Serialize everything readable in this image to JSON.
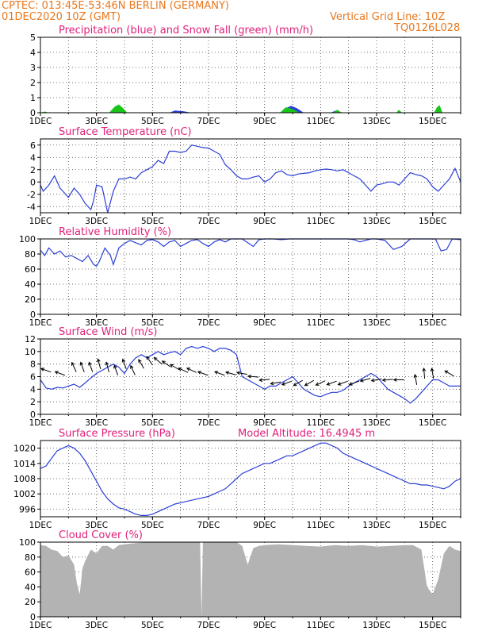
{
  "header": {
    "line1": "CPTEC:   013:45E-53:46N   BERLIN (GERMANY)",
    "line2": "01DEC2020 10Z (GMT)",
    "right1": "Vertical Grid Line: 10Z",
    "right2": "TQ0126L028"
  },
  "colors": {
    "header": "#e8781e",
    "title": "#e0217b",
    "series": "#2a3fd6",
    "snow": "#19c419",
    "cloud": "#b3b3b3",
    "grid": "#444444"
  },
  "x_ticks": [
    "1DEC",
    "3DEC",
    "5DEC",
    "7DEC",
    "9DEC",
    "11DEC",
    "13DEC",
    "15DEC"
  ],
  "x_range_days": [
    1,
    16
  ],
  "chart_data": [
    {
      "type": "area",
      "title": "Precipitation (blue) and Snow Fall (green) (mm/h)",
      "ylim": [
        0,
        5
      ],
      "yticks": [
        "0",
        "1",
        "2",
        "3",
        "4",
        "5"
      ],
      "series": [
        {
          "color": "blue",
          "x": [
            1,
            3.5,
            3.7,
            3.85,
            4,
            5.6,
            5.8,
            6.1,
            6.4,
            9.55,
            9.75,
            9.95,
            10.15,
            10.4,
            11.35,
            11.55,
            11.8
          ],
          "values": [
            0,
            0,
            0.05,
            0.1,
            0,
            0,
            0.15,
            0.1,
            0,
            0,
            0.3,
            0.45,
            0.3,
            0,
            0,
            0.15,
            0
          ]
        },
        {
          "color": "green",
          "x": [
            1,
            1.15,
            1.3,
            3.45,
            3.65,
            3.8,
            3.95,
            4.1,
            9.55,
            9.75,
            9.9,
            10.05,
            10.25,
            11.45,
            11.6,
            11.75,
            13.7,
            13.8,
            13.9,
            15.05,
            15.15,
            15.25,
            15.35
          ],
          "values": [
            0,
            0.08,
            0,
            0,
            0.4,
            0.55,
            0.3,
            0,
            0,
            0.35,
            0.3,
            0.2,
            0,
            0,
            0.2,
            0,
            0,
            0.2,
            0,
            0,
            0.35,
            0.5,
            0
          ]
        }
      ]
    },
    {
      "type": "line",
      "title": "Surface Temperature (nC)",
      "ylim": [
        -5,
        7
      ],
      "yticks": [
        "-4",
        "-2",
        "0",
        "2",
        "4",
        "6"
      ],
      "x": [
        1,
        1.1,
        1.3,
        1.5,
        1.7,
        1.8,
        2.0,
        2.2,
        2.4,
        2.6,
        2.8,
        2.9,
        3.0,
        3.2,
        3.4,
        3.6,
        3.8,
        4.0,
        4.2,
        4.4,
        4.6,
        4.8,
        5.0,
        5.2,
        5.4,
        5.6,
        5.8,
        6.0,
        6.2,
        6.4,
        6.6,
        6.8,
        7.0,
        7.2,
        7.4,
        7.6,
        7.8,
        8.0,
        8.2,
        8.4,
        8.6,
        8.8,
        9.0,
        9.2,
        9.4,
        9.6,
        9.8,
        10.0,
        10.2,
        10.4,
        10.6,
        10.8,
        11.0,
        11.2,
        11.4,
        11.6,
        11.8,
        12.0,
        12.2,
        12.4,
        12.6,
        12.8,
        13.0,
        13.2,
        13.4,
        13.6,
        13.8,
        14.0,
        14.2,
        14.4,
        14.6,
        14.8,
        15.0,
        15.2,
        15.4,
        15.6,
        15.8,
        16.0
      ],
      "values": [
        -0.5,
        -1.5,
        -0.5,
        1.0,
        -1.0,
        -1.5,
        -2.5,
        -1.0,
        -2.0,
        -3.5,
        -4.5,
        -3.0,
        -0.5,
        -0.8,
        -5.0,
        -1.5,
        0.5,
        0.5,
        0.8,
        0.5,
        1.5,
        2.0,
        2.5,
        3.5,
        3.0,
        5.0,
        5.0,
        4.8,
        5.0,
        6.0,
        5.8,
        5.6,
        5.5,
        5.0,
        4.5,
        2.8,
        2.0,
        1.0,
        0.5,
        0.5,
        0.8,
        1.0,
        0.0,
        0.5,
        1.5,
        1.8,
        1.2,
        1.0,
        1.3,
        1.4,
        1.5,
        1.8,
        2.0,
        2.1,
        2.0,
        1.8,
        2.0,
        1.5,
        1.0,
        0.5,
        -0.5,
        -1.5,
        -0.5,
        -0.3,
        0.0,
        0.0,
        -0.5,
        0.5,
        1.5,
        1.2,
        1.0,
        0.5,
        -0.8,
        -1.5,
        -0.5,
        0.5,
        2.2,
        0.0
      ]
    },
    {
      "type": "line",
      "title": "Relative Humidity (%)",
      "ylim": [
        0,
        100
      ],
      "yticks": [
        "0",
        "20",
        "40",
        "60",
        "80",
        "100"
      ],
      "x": [
        1,
        1.15,
        1.3,
        1.5,
        1.7,
        1.9,
        2.1,
        2.3,
        2.5,
        2.7,
        2.9,
        3.0,
        3.1,
        3.3,
        3.5,
        3.6,
        3.8,
        4.0,
        4.2,
        4.4,
        4.6,
        4.8,
        5.0,
        5.2,
        5.4,
        5.6,
        5.8,
        6.0,
        6.2,
        6.4,
        6.6,
        6.8,
        7.0,
        7.2,
        7.4,
        7.6,
        7.8,
        8.0,
        8.2,
        8.4,
        8.6,
        8.8,
        9.0,
        9.3,
        9.6,
        9.9,
        10.2,
        10.5,
        10.8,
        11.1,
        11.4,
        11.7,
        12.0,
        12.2,
        12.4,
        12.6,
        12.8,
        13.0,
        13.3,
        13.6,
        13.9,
        14.2,
        14.5,
        14.7,
        14.9,
        15.1,
        15.3,
        15.5,
        15.7,
        16.0
      ],
      "values": [
        85,
        78,
        88,
        80,
        84,
        76,
        78,
        74,
        70,
        78,
        66,
        64,
        70,
        88,
        78,
        66,
        88,
        94,
        98,
        95,
        92,
        98,
        99,
        96,
        90,
        96,
        98,
        90,
        94,
        98,
        99,
        94,
        90,
        96,
        99,
        96,
        100,
        100,
        100,
        95,
        90,
        99,
        100,
        100,
        99,
        100,
        100,
        100,
        100,
        100,
        100,
        100,
        100,
        99,
        96,
        98,
        100,
        100,
        98,
        86,
        90,
        100,
        100,
        100,
        100,
        100,
        84,
        86,
        100,
        99
      ]
    },
    {
      "type": "line",
      "title": "Surface Wind (m/s)",
      "ylim": [
        0,
        12
      ],
      "yticks": [
        "0",
        "2",
        "4",
        "6",
        "8",
        "10",
        "12"
      ],
      "x": [
        1,
        1.2,
        1.4,
        1.6,
        1.8,
        2.0,
        2.2,
        2.4,
        2.6,
        2.8,
        3.0,
        3.2,
        3.4,
        3.6,
        3.8,
        4.0,
        4.2,
        4.4,
        4.6,
        4.8,
        5.0,
        5.2,
        5.4,
        5.6,
        5.8,
        6.0,
        6.2,
        6.4,
        6.6,
        6.8,
        7.0,
        7.2,
        7.4,
        7.6,
        7.8,
        8.0,
        8.2,
        8.4,
        8.6,
        8.8,
        9.0,
        9.2,
        9.4,
        9.6,
        9.8,
        10.0,
        10.2,
        10.4,
        10.6,
        10.8,
        11.0,
        11.2,
        11.4,
        11.6,
        11.8,
        12.0,
        12.2,
        12.4,
        12.6,
        12.8,
        13.0,
        13.2,
        13.4,
        13.6,
        13.8,
        14.0,
        14.2,
        14.4,
        14.6,
        14.8,
        15.0,
        15.2,
        15.4,
        15.6,
        15.8,
        16.0
      ],
      "values": [
        5.5,
        4.2,
        4.0,
        4.3,
        4.2,
        4.5,
        4.8,
        4.3,
        5.0,
        5.8,
        6.5,
        7.0,
        7.5,
        8.0,
        7.5,
        6.5,
        8.0,
        9.0,
        9.5,
        9.0,
        9.5,
        10.0,
        9.5,
        9.8,
        10.0,
        9.5,
        10.5,
        10.8,
        10.5,
        10.8,
        10.5,
        10.0,
        10.5,
        10.5,
        10.2,
        9.5,
        6.0,
        5.5,
        5.0,
        4.5,
        4.0,
        4.5,
        4.5,
        5.0,
        5.5,
        6.0,
        5.0,
        4.0,
        3.5,
        3.0,
        2.8,
        3.2,
        3.5,
        3.5,
        3.8,
        4.5,
        5.0,
        5.5,
        6.0,
        6.5,
        6.0,
        5.0,
        4.0,
        3.5,
        3.0,
        2.5,
        1.8,
        2.5,
        3.5,
        4.5,
        5.5,
        5.5,
        5.0,
        4.5,
        4.5,
        4.5
      ]
    },
    {
      "type": "line",
      "title": "Surface Pressure (hPa)",
      "annotation": "Model Altitude: 16.4945 m",
      "ylim": [
        993,
        1023
      ],
      "yticks": [
        "996",
        "1002",
        "1008",
        "1014",
        "1020"
      ],
      "x": [
        1,
        1.2,
        1.4,
        1.6,
        1.8,
        2.0,
        2.2,
        2.4,
        2.6,
        2.8,
        3.0,
        3.2,
        3.4,
        3.6,
        3.8,
        4.0,
        4.2,
        4.4,
        4.6,
        4.8,
        5.0,
        5.2,
        5.4,
        5.6,
        5.8,
        6.0,
        6.2,
        6.4,
        6.6,
        6.8,
        7.0,
        7.2,
        7.4,
        7.6,
        7.8,
        8.0,
        8.2,
        8.4,
        8.6,
        8.8,
        9.0,
        9.2,
        9.4,
        9.6,
        9.8,
        10.0,
        10.2,
        10.4,
        10.6,
        10.8,
        11.0,
        11.2,
        11.4,
        11.6,
        11.8,
        12.0,
        12.2,
        12.4,
        12.6,
        12.8,
        13.0,
        13.2,
        13.4,
        13.6,
        13.8,
        14.0,
        14.2,
        14.4,
        14.6,
        14.8,
        15.0,
        15.2,
        15.4,
        15.6,
        15.8,
        16.0
      ],
      "values": [
        1012,
        1013,
        1016,
        1019,
        1020,
        1021,
        1020,
        1018,
        1015,
        1011,
        1007,
        1003,
        1000,
        998,
        996.5,
        996,
        995,
        994,
        993.5,
        993.5,
        994,
        995,
        996,
        997,
        998,
        998.5,
        999,
        999.5,
        1000,
        1000.5,
        1001,
        1002,
        1003,
        1004,
        1006,
        1008,
        1010,
        1011,
        1012,
        1013,
        1014,
        1014,
        1015,
        1016,
        1017,
        1017,
        1018,
        1019,
        1020,
        1021,
        1022,
        1022,
        1021,
        1020,
        1018,
        1017,
        1016,
        1015,
        1014,
        1013,
        1012,
        1011,
        1010,
        1009,
        1008,
        1007,
        1006,
        1006,
        1005.5,
        1005.5,
        1005,
        1004.5,
        1004,
        1005,
        1007,
        1008
      ]
    },
    {
      "type": "area",
      "title": "Cloud Cover (%)",
      "ylim": [
        0,
        100
      ],
      "yticks": [
        "0",
        "20",
        "40",
        "60",
        "80",
        "100"
      ],
      "x": [
        1,
        1.2,
        1.4,
        1.6,
        1.8,
        2.0,
        2.2,
        2.3,
        2.4,
        2.5,
        2.6,
        2.8,
        3.0,
        3.2,
        3.4,
        3.6,
        3.8,
        4.0,
        4.5,
        5.0,
        5.5,
        6.0,
        6.5,
        6.7,
        6.75,
        6.8,
        7.0,
        7.5,
        8.0,
        8.2,
        8.4,
        8.6,
        8.8,
        9.0,
        9.5,
        10.0,
        10.5,
        11.0,
        11.5,
        12.0,
        12.5,
        13.0,
        13.5,
        14.0,
        14.3,
        14.6,
        14.8,
        15.0,
        15.2,
        15.4,
        15.6,
        15.8,
        16.0
      ],
      "values": [
        96,
        95,
        90,
        88,
        80,
        82,
        70,
        45,
        30,
        65,
        75,
        90,
        85,
        95,
        95,
        90,
        96,
        97,
        99,
        100,
        100,
        100,
        100,
        100,
        0,
        100,
        100,
        100,
        100,
        95,
        70,
        92,
        95,
        96,
        97,
        96,
        95,
        94,
        96,
        95,
        96,
        94,
        95,
        96,
        96,
        90,
        40,
        30,
        50,
        85,
        95,
        90,
        88
      ]
    }
  ],
  "wind_barbs": {
    "x": [
      1.2,
      1.7,
      2.2,
      2.5,
      2.8,
      3.1,
      3.4,
      3.7,
      4.0,
      4.3,
      4.6,
      4.9,
      5.2,
      5.5,
      5.8,
      6.1,
      6.4,
      6.8,
      7.4,
      7.8,
      8.2,
      8.6,
      9.0,
      9.4,
      9.8,
      10.2,
      10.6,
      11.0,
      11.4,
      11.8,
      12.2,
      12.6,
      13.0,
      13.4,
      13.8,
      14.4,
      14.7,
      15.0,
      15.6
    ],
    "y": [
      7.0,
      6.5,
      7.5,
      7.5,
      7.5,
      8.0,
      7.5,
      7.0,
      8.0,
      7.0,
      8.0,
      8.5,
      8.5,
      8.0,
      7.5,
      7.0,
      7.0,
      6.5,
      6.5,
      6.5,
      6.5,
      6.0,
      5.5,
      5.0,
      5.0,
      5.0,
      5.0,
      5.0,
      5.0,
      5.0,
      5.0,
      5.5,
      5.5,
      5.5,
      5.5,
      5.5,
      6.5,
      6.5,
      6.5
    ],
    "direction_deg": [
      -160,
      -160,
      -115,
      -110,
      -110,
      -105,
      -105,
      -110,
      -110,
      -115,
      -120,
      -125,
      -140,
      -145,
      -150,
      -155,
      -155,
      -160,
      -160,
      -165,
      -170,
      -175,
      -185,
      -190,
      -200,
      -210,
      -210,
      -205,
      -200,
      -200,
      -200,
      -195,
      -190,
      -185,
      -180,
      -100,
      -95,
      -100,
      -150
    ]
  }
}
